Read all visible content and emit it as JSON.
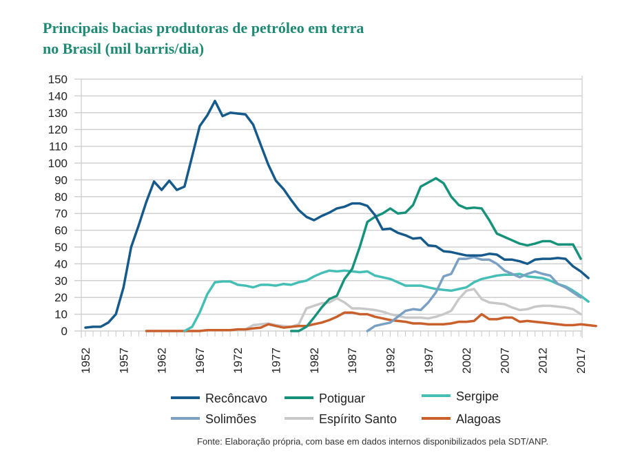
{
  "title_line1": "Principais bacias produtoras de petróleo em terra",
  "title_line2": "no Brasil (mil barris/dia)",
  "source": "Fonte: Elaboração própria, com base em dados internos disponibilizados pela SDT/ANP.",
  "chart_data": {
    "type": "line",
    "title": "Principais bacias produtoras de petróleo em terra no Brasil (mil barris/dia)",
    "xlabel": "",
    "ylabel": "",
    "xlim": [
      1952,
      2017
    ],
    "ylim": [
      0,
      150
    ],
    "yticks": [
      0,
      10,
      20,
      30,
      40,
      50,
      60,
      70,
      80,
      90,
      100,
      110,
      120,
      130,
      140,
      150
    ],
    "xticks": [
      1952,
      1957,
      1962,
      1967,
      1972,
      1977,
      1982,
      1987,
      1992,
      1997,
      2002,
      2007,
      2012,
      2017
    ],
    "grid": "horizontal",
    "legend_position": "bottom",
    "series": [
      {
        "name": "Recôncavo",
        "color": "#155a8a",
        "start": 1952,
        "values": [
          2,
          2.5,
          2.5,
          5,
          10,
          26,
          50,
          63,
          77,
          89,
          84,
          89.5,
          84,
          86,
          104,
          122,
          128.5,
          137,
          128,
          130,
          129.5,
          129,
          123,
          111,
          99,
          89.5,
          84.5,
          78,
          72,
          68,
          66,
          68.5,
          70.5,
          73,
          74,
          76,
          76,
          74.5,
          69,
          60.5,
          61,
          58.5,
          57,
          55,
          55.5,
          51,
          50.5,
          47.5,
          47,
          46,
          45,
          45,
          45,
          46,
          45.5,
          42.5,
          42.5,
          41.5,
          40,
          42.5,
          43,
          43,
          43.5,
          43,
          38.5,
          35.5,
          31.5
        ]
      },
      {
        "name": "Potiguar",
        "color": "#17927a",
        "start": 1979,
        "values": [
          0,
          0,
          2.5,
          8,
          14,
          19,
          21,
          31,
          37,
          50,
          65,
          68,
          70,
          73,
          70,
          70.5,
          75,
          86,
          88.5,
          91,
          88,
          80,
          75,
          73,
          73.5,
          73,
          66,
          58,
          56,
          54,
          52,
          51,
          52,
          53.5,
          53.5,
          51.5,
          51.5,
          51.5,
          43
        ]
      },
      {
        "name": "Sergipe",
        "color": "#45bfb6",
        "start": 1965,
        "values": [
          0,
          2.5,
          11,
          22,
          29,
          29.5,
          29.5,
          27.5,
          27,
          26,
          27.5,
          27.5,
          27,
          28,
          27.5,
          29,
          30,
          32.5,
          34.5,
          36,
          35.5,
          36,
          35.5,
          35,
          35.5,
          33,
          32,
          31,
          29,
          27,
          27,
          27,
          26,
          25,
          24.5,
          24,
          25,
          26,
          29,
          31,
          32,
          33,
          33.5,
          33.5,
          34,
          32.5,
          32,
          31.5,
          30,
          28,
          26.5,
          24,
          21,
          17.5
        ]
      },
      {
        "name": "Solimões",
        "color": "#7aa1c4",
        "start": 1989,
        "values": [
          0,
          3,
          4,
          5,
          8.5,
          12,
          13,
          12.5,
          17,
          23,
          32.5,
          34,
          43,
          43,
          44,
          42.5,
          42.5,
          40,
          36,
          34,
          32,
          34,
          35.5,
          34,
          33,
          28,
          26,
          23,
          20
        ]
      },
      {
        "name": "Espírito Santo",
        "color": "#c8c8c8",
        "start": 1973,
        "values": [
          1,
          3.5,
          4,
          4.5,
          3.5,
          3,
          2.5,
          4,
          13.5,
          15,
          16.5,
          17,
          19.5,
          17,
          13.5,
          13.5,
          13,
          12.5,
          11.5,
          10,
          9,
          8,
          8,
          8,
          7.5,
          8.5,
          10,
          12,
          19,
          24,
          25,
          19,
          17,
          16.5,
          16,
          14,
          12.5,
          13,
          14.5,
          15,
          15,
          14.5,
          14,
          13,
          10
        ]
      },
      {
        "name": "Alagoas",
        "color": "#c95f2a",
        "start": 1960,
        "values": [
          0,
          0,
          0,
          0,
          0,
          0,
          0,
          0,
          0.5,
          0.5,
          0.5,
          0.5,
          1,
          1,
          1.5,
          2,
          4,
          3,
          2,
          2.5,
          3,
          3,
          4,
          5,
          6.5,
          8.5,
          11,
          11,
          10,
          10,
          8.5,
          7.5,
          6.5,
          6,
          5.5,
          4.5,
          4.5,
          4,
          4,
          4,
          4.5,
          5.5,
          5.5,
          6,
          10,
          7,
          7,
          8,
          8,
          5.5,
          6,
          5.5,
          5,
          4.5,
          4,
          3.5,
          3.5,
          4,
          3.5,
          3
        ]
      }
    ],
    "legend": [
      "Recôncavo",
      "Potiguar",
      "Sergipe",
      "Solimões",
      "Espírito Santo",
      "Alagoas"
    ]
  }
}
